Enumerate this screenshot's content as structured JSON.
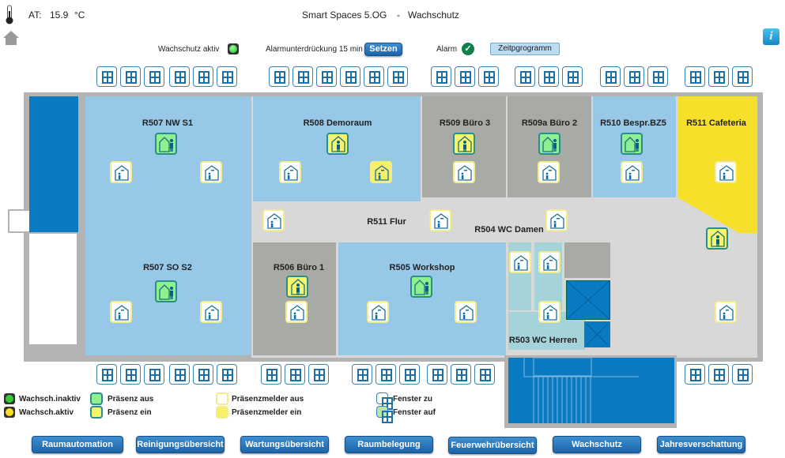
{
  "header": {
    "at_label": "AT:",
    "temperature": "15.9",
    "unit": "°C",
    "title": "Smart Spaces 5.OG",
    "separator": "-",
    "subtitle": "Wachschutz"
  },
  "controls": {
    "wachschutz_label": "Wachschutz aktiv",
    "wachschutz_state": "inaktiv",
    "alarm_suppress_label": "Alarmunterdrückung 15 min",
    "set_button": "Setzen",
    "alarm_label": "Alarm",
    "schedule_button": "Zeitpgrogramm"
  },
  "rooms": {
    "r507nw": "R507 NW S1",
    "r508": "R508 Demoraum",
    "r509": "R509 Büro 3",
    "r509a": "R509a Büro 2",
    "r510": "R510 Bespr.BZ5",
    "r511c": "R511 Cafeteria",
    "r511f": "R511 Flur",
    "r504": "R504 WC Damen",
    "r507so": "R507 SO S2",
    "r506": "R506 Büro 1",
    "r505": "R505 Workshop",
    "r503": "R503 WC Herren"
  },
  "presence": {
    "r507nw": "aus",
    "r508": "ein",
    "r509": "ein",
    "r509a": "aus",
    "r510": "aus",
    "r511f": "ein",
    "r507so": "aus",
    "r506": "ein",
    "r505": "aus"
  },
  "sensors": [
    "aus",
    "aus",
    "aus",
    "ein",
    "aus",
    "aus",
    "aus",
    "aus",
    "aus",
    "aus",
    "aus",
    "aus",
    "aus",
    "aus",
    "aus",
    "aus",
    "aus",
    "aus",
    "aus",
    "aus",
    "aus",
    "aus"
  ],
  "windows": {
    "top_state": "zu",
    "bottom_state": "zu"
  },
  "legend": {
    "wachsch_inaktiv": "Wachsch.inaktiv",
    "wachsch_aktiv": "Wachsch.aktiv",
    "praesenz_aus": "Präsenz aus",
    "praesenz_ein": "Präsenz ein",
    "melder_aus": "Präsenzmelder aus",
    "melder_ein": "Präsenzmelder ein",
    "fenster_zu": "Fenster zu",
    "fenster_auf": "Fenster auf"
  },
  "nav": [
    "Raumautomation",
    "Reinigungsübersicht",
    "Wartungsübersicht",
    "Raumbelegung",
    "Feuerwehrübersicht",
    "Wachschutz",
    "Jahresverschattung"
  ],
  "colors": {
    "room_blue": "#98c8e8",
    "room_gray": "#a8aba5",
    "corridor": "#d8d8d8",
    "cafeteria": "#f6e02a",
    "stair": "#0a7bc2",
    "wc": "#a5d3da"
  }
}
